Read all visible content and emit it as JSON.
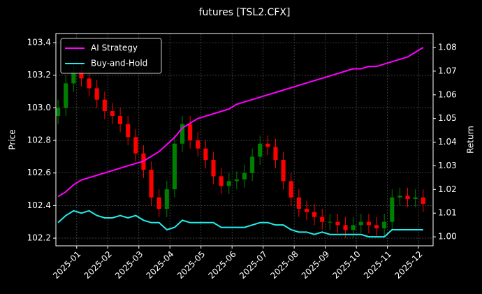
{
  "chart_data": {
    "type": "candlestick",
    "title": "futures [TSL2.CFX]",
    "y_label": "Price",
    "y2_label": "Return",
    "x": [
      -0.6,
      -0.35,
      -0.1,
      0.15,
      0.4,
      0.65,
      0.9,
      1.15,
      1.4,
      1.65,
      1.9,
      2.15,
      2.4,
      2.65,
      2.9,
      3.15,
      3.4,
      3.65,
      3.9,
      4.15,
      4.4,
      4.65,
      4.9,
      5.15,
      5.4,
      5.65,
      5.9,
      6.15,
      6.4,
      6.65,
      6.9,
      7.15,
      7.4,
      7.65,
      7.9,
      8.15,
      8.4,
      8.65,
      8.9,
      9.15,
      9.4,
      9.65,
      9.9,
      10.15,
      10.4,
      10.65,
      10.9,
      11.15
    ],
    "open": [
      102.95,
      103.0,
      103.15,
      103.22,
      103.18,
      103.12,
      103.05,
      102.98,
      102.95,
      102.9,
      102.82,
      102.72,
      102.62,
      102.45,
      102.38,
      102.5,
      102.78,
      102.9,
      102.8,
      102.75,
      102.68,
      102.58,
      102.52,
      102.55,
      102.56,
      102.6,
      102.7,
      102.78,
      102.76,
      102.68,
      102.55,
      102.45,
      102.38,
      102.36,
      102.33,
      102.3,
      102.3,
      102.28,
      102.25,
      102.28,
      102.3,
      102.28,
      102.26,
      102.3,
      102.45,
      102.46,
      102.44,
      102.45
    ],
    "high": [
      103.05,
      103.2,
      103.27,
      103.27,
      103.23,
      103.17,
      103.1,
      103.03,
      103.0,
      102.95,
      102.87,
      102.77,
      102.67,
      102.5,
      102.55,
      102.83,
      102.95,
      102.95,
      102.85,
      102.8,
      102.73,
      102.63,
      102.6,
      102.61,
      102.65,
      102.75,
      102.83,
      102.83,
      102.81,
      102.73,
      102.6,
      102.5,
      102.43,
      102.41,
      102.38,
      102.35,
      102.35,
      102.33,
      102.33,
      102.35,
      102.35,
      102.33,
      102.35,
      102.5,
      102.51,
      102.51,
      102.5,
      102.5
    ],
    "low": [
      102.9,
      102.95,
      103.1,
      103.13,
      103.07,
      103.0,
      102.93,
      102.9,
      102.85,
      102.77,
      102.67,
      102.57,
      102.4,
      102.33,
      102.33,
      102.45,
      102.73,
      102.75,
      102.7,
      102.63,
      102.53,
      102.47,
      102.47,
      102.5,
      102.51,
      102.55,
      102.65,
      102.71,
      102.63,
      102.5,
      102.4,
      102.33,
      102.31,
      102.28,
      102.25,
      102.25,
      102.23,
      102.2,
      102.2,
      102.23,
      102.23,
      102.21,
      102.21,
      102.25,
      102.4,
      102.39,
      102.39,
      102.36
    ],
    "close": [
      103.0,
      103.15,
      103.22,
      103.18,
      103.12,
      103.05,
      102.98,
      102.95,
      102.9,
      102.82,
      102.72,
      102.62,
      102.45,
      102.38,
      102.5,
      102.78,
      102.9,
      102.8,
      102.75,
      102.68,
      102.58,
      102.52,
      102.55,
      102.56,
      102.6,
      102.7,
      102.78,
      102.76,
      102.68,
      102.55,
      102.45,
      102.38,
      102.36,
      102.33,
      102.3,
      102.3,
      102.28,
      102.25,
      102.28,
      102.3,
      102.28,
      102.26,
      102.3,
      102.45,
      102.46,
      102.44,
      102.45,
      102.41
    ],
    "up_color": "#008000",
    "down_color": "#ff0000",
    "series": [
      {
        "name": "AI Strategy",
        "color": "#ff00ff",
        "axis": "y2",
        "values": [
          1.017,
          1.019,
          1.022,
          1.024,
          1.025,
          1.026,
          1.027,
          1.028,
          1.029,
          1.03,
          1.031,
          1.032,
          1.034,
          1.036,
          1.039,
          1.042,
          1.046,
          1.048,
          1.05,
          1.051,
          1.052,
          1.053,
          1.054,
          1.056,
          1.057,
          1.058,
          1.059,
          1.06,
          1.061,
          1.062,
          1.063,
          1.064,
          1.065,
          1.066,
          1.067,
          1.068,
          1.069,
          1.07,
          1.071,
          1.071,
          1.072,
          1.072,
          1.073,
          1.074,
          1.075,
          1.076,
          1.078,
          1.08
        ]
      },
      {
        "name": "Buy-and-Hold",
        "color": "#22eeee",
        "axis": "y2",
        "values": [
          1.006,
          1.009,
          1.011,
          1.01,
          1.011,
          1.009,
          1.008,
          1.008,
          1.009,
          1.008,
          1.009,
          1.007,
          1.006,
          1.006,
          1.003,
          1.004,
          1.007,
          1.006,
          1.006,
          1.006,
          1.006,
          1.004,
          1.004,
          1.004,
          1.004,
          1.005,
          1.006,
          1.006,
          1.005,
          1.005,
          1.003,
          1.002,
          1.002,
          1.001,
          1.002,
          1.001,
          1.001,
          1.001,
          1.001,
          1.001,
          1.0,
          1.0,
          1.0,
          1.003,
          1.003,
          1.003,
          1.003,
          1.003
        ]
      }
    ],
    "xlim": [
      -0.67,
      11.47
    ],
    "xticks": [
      {
        "value": 0,
        "label": "2025-01"
      },
      {
        "value": 1,
        "label": "2025-02"
      },
      {
        "value": 2,
        "label": "2025-03"
      },
      {
        "value": 3,
        "label": "2025-04"
      },
      {
        "value": 4,
        "label": "2025-05"
      },
      {
        "value": 5,
        "label": "2025-06"
      },
      {
        "value": 6,
        "label": "2025-07"
      },
      {
        "value": 7,
        "label": "2025-08"
      },
      {
        "value": 8,
        "label": "2025-09"
      },
      {
        "value": 9,
        "label": "2025-10"
      },
      {
        "value": 10,
        "label": "2025-11"
      },
      {
        "value": 11,
        "label": "2025-12"
      }
    ],
    "ylim": [
      102.153,
      103.456
    ],
    "yticks": [
      102.2,
      102.4,
      102.6,
      102.8,
      {
        "value": 103,
        "label": "103.0"
      },
      103.2,
      103.4
    ],
    "y2lim": [
      0.9962,
      1.0859
    ],
    "y2ticks": [
      {
        "value": 1,
        "label": "1.00"
      },
      1.01,
      1.02,
      1.03,
      1.04,
      1.05,
      1.06,
      1.07,
      1.08
    ],
    "grid": true,
    "legend": "upper left"
  }
}
